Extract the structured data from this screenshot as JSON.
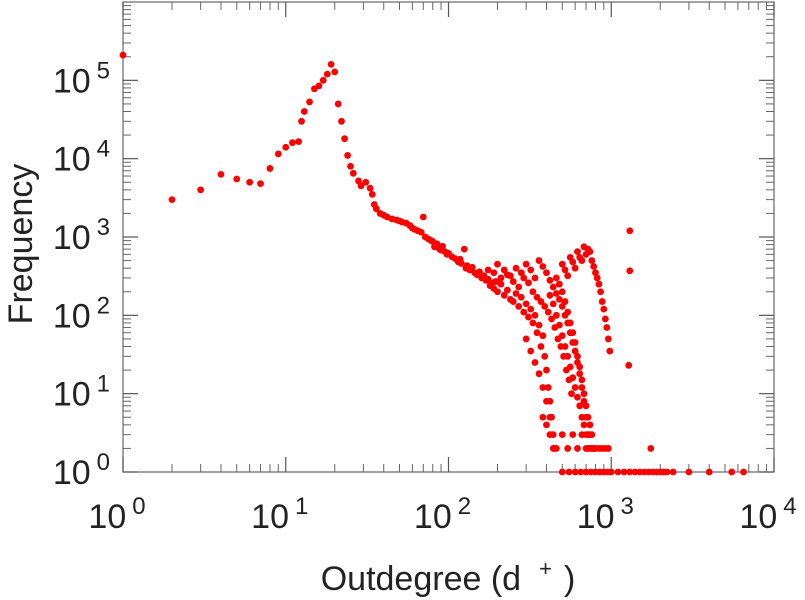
{
  "chart_data": {
    "type": "scatter",
    "title": "",
    "xlabel": {
      "main": "Outdegree (d",
      "sup": "+",
      "close": ")"
    },
    "ylabel": "Frequency",
    "x_scale": "log",
    "y_scale": "log",
    "xlim": [
      1,
      10000
    ],
    "ylim": [
      1,
      1000000
    ],
    "grid": false,
    "legend": "none",
    "marker_color": "#ff0000",
    "x_ticks": [
      {
        "base": "10",
        "exp": "0",
        "value": 1
      },
      {
        "base": "10",
        "exp": "1",
        "value": 10
      },
      {
        "base": "10",
        "exp": "2",
        "value": 100
      },
      {
        "base": "10",
        "exp": "3",
        "value": 1000
      },
      {
        "base": "10",
        "exp": "4",
        "value": 10000
      }
    ],
    "y_ticks": [
      {
        "base": "10",
        "exp": "0",
        "value": 1
      },
      {
        "base": "10",
        "exp": "1",
        "value": 10
      },
      {
        "base": "10",
        "exp": "2",
        "value": 100
      },
      {
        "base": "10",
        "exp": "3",
        "value": 1000
      },
      {
        "base": "10",
        "exp": "4",
        "value": 10000
      },
      {
        "base": "10",
        "exp": "5",
        "value": 100000
      }
    ],
    "points": [
      [
        1,
        210000
      ],
      [
        2,
        3000
      ],
      [
        3,
        4000
      ],
      [
        4,
        6300
      ],
      [
        5,
        5500
      ],
      [
        6,
        5000
      ],
      [
        7,
        4800
      ],
      [
        8,
        7500
      ],
      [
        9,
        11500
      ],
      [
        10,
        14000
      ],
      [
        11,
        16000
      ],
      [
        12,
        16500
      ],
      [
        12.5,
        30000
      ],
      [
        13,
        40000
      ],
      [
        14,
        53000
      ],
      [
        15,
        78000
      ],
      [
        16,
        85000
      ],
      [
        17,
        100000
      ],
      [
        18,
        120000
      ],
      [
        19,
        160000
      ],
      [
        20,
        128000
      ],
      [
        21,
        50000
      ],
      [
        22,
        30000
      ],
      [
        23,
        18000
      ],
      [
        24,
        11000
      ],
      [
        25,
        8000
      ],
      [
        26,
        6500
      ],
      [
        28,
        5200
      ],
      [
        29,
        4500
      ],
      [
        31,
        5000
      ],
      [
        33,
        4200
      ],
      [
        34,
        3500
      ],
      [
        35,
        2600
      ],
      [
        36,
        2300
      ],
      [
        38,
        2000
      ],
      [
        40,
        1900
      ],
      [
        42,
        1800
      ],
      [
        45,
        1700
      ],
      [
        48,
        1650
      ],
      [
        50,
        1600
      ],
      [
        52,
        1550
      ],
      [
        55,
        1500
      ],
      [
        58,
        1400
      ],
      [
        60,
        1300
      ],
      [
        62,
        1250
      ],
      [
        65,
        1200
      ],
      [
        68,
        1150
      ],
      [
        70,
        1800
      ],
      [
        72,
        1000
      ],
      [
        75,
        950
      ],
      [
        78,
        900
      ],
      [
        80,
        880
      ],
      [
        82,
        750
      ],
      [
        85,
        820
      ],
      [
        88,
        700
      ],
      [
        90,
        680
      ],
      [
        92,
        760
      ],
      [
        95,
        650
      ],
      [
        98,
        600
      ],
      [
        100,
        620
      ],
      [
        105,
        560
      ],
      [
        110,
        530
      ],
      [
        115,
        480
      ],
      [
        118,
        520
      ],
      [
        120,
        460
      ],
      [
        125,
        700
      ],
      [
        128,
        400
      ],
      [
        130,
        430
      ],
      [
        135,
        380
      ],
      [
        140,
        410
      ],
      [
        145,
        350
      ],
      [
        150,
        330
      ],
      [
        155,
        360
      ],
      [
        160,
        300
      ],
      [
        165,
        320
      ],
      [
        170,
        280
      ],
      [
        175,
        290
      ],
      [
        180,
        240
      ],
      [
        185,
        260
      ],
      [
        190,
        220
      ],
      [
        195,
        270
      ],
      [
        200,
        200
      ],
      [
        210,
        300
      ],
      [
        220,
        180
      ],
      [
        230,
        210
      ],
      [
        240,
        160
      ],
      [
        250,
        150
      ],
      [
        260,
        190
      ],
      [
        270,
        130
      ],
      [
        280,
        170
      ],
      [
        290,
        110
      ],
      [
        300,
        140
      ],
      [
        310,
        95
      ],
      [
        320,
        120
      ],
      [
        330,
        80
      ],
      [
        340,
        100
      ],
      [
        350,
        60
      ],
      [
        360,
        75
      ],
      [
        370,
        40
      ],
      [
        380,
        55
      ],
      [
        390,
        30
      ],
      [
        400,
        20
      ],
      [
        410,
        12
      ],
      [
        420,
        8
      ],
      [
        430,
        5
      ],
      [
        440,
        3
      ],
      [
        450,
        2
      ],
      [
        175,
        380
      ],
      [
        190,
        350
      ],
      [
        210,
        250
      ],
      [
        230,
        330
      ],
      [
        250,
        270
      ],
      [
        270,
        230
      ],
      [
        290,
        300
      ],
      [
        310,
        260
      ],
      [
        330,
        200
      ],
      [
        350,
        170
      ],
      [
        370,
        150
      ],
      [
        390,
        130
      ],
      [
        410,
        110
      ],
      [
        430,
        90
      ],
      [
        450,
        70
      ],
      [
        470,
        50
      ],
      [
        490,
        40
      ],
      [
        510,
        30
      ],
      [
        530,
        20
      ],
      [
        550,
        15
      ],
      [
        570,
        10
      ],
      [
        200,
        450
      ],
      [
        220,
        380
      ],
      [
        240,
        320
      ],
      [
        260,
        400
      ],
      [
        280,
        350
      ],
      [
        300,
        450
      ],
      [
        320,
        380
      ],
      [
        340,
        300
      ],
      [
        360,
        500
      ],
      [
        380,
        420
      ],
      [
        400,
        350
      ],
      [
        420,
        280
      ],
      [
        440,
        230
      ],
      [
        460,
        190
      ],
      [
        480,
        160
      ],
      [
        500,
        130
      ],
      [
        520,
        100
      ],
      [
        540,
        80
      ],
      [
        560,
        60
      ],
      [
        580,
        45
      ],
      [
        600,
        35
      ],
      [
        620,
        25
      ],
      [
        640,
        18
      ],
      [
        660,
        12
      ],
      [
        680,
        8
      ],
      [
        700,
        5
      ],
      [
        720,
        3
      ],
      [
        740,
        2
      ],
      [
        300,
        50
      ],
      [
        320,
        35
      ],
      [
        340,
        25
      ],
      [
        360,
        18
      ],
      [
        380,
        12
      ],
      [
        400,
        8
      ],
      [
        420,
        5
      ],
      [
        460,
        300
      ],
      [
        480,
        250
      ],
      [
        500,
        450
      ],
      [
        520,
        380
      ],
      [
        540,
        320
      ],
      [
        560,
        550
      ],
      [
        580,
        480
      ],
      [
        600,
        400
      ],
      [
        620,
        650
      ],
      [
        640,
        550
      ],
      [
        660,
        500
      ],
      [
        680,
        750
      ],
      [
        700,
        600
      ],
      [
        720,
        700
      ],
      [
        740,
        650
      ],
      [
        760,
        500
      ],
      [
        780,
        420
      ],
      [
        800,
        350
      ],
      [
        820,
        300
      ],
      [
        840,
        250
      ],
      [
        860,
        200
      ],
      [
        880,
        150
      ],
      [
        900,
        120
      ],
      [
        920,
        90
      ],
      [
        940,
        70
      ],
      [
        960,
        50
      ],
      [
        980,
        35
      ],
      [
        500,
        200
      ],
      [
        520,
        150
      ],
      [
        540,
        110
      ],
      [
        560,
        80
      ],
      [
        580,
        60
      ],
      [
        600,
        45
      ],
      [
        620,
        30
      ],
      [
        640,
        22
      ],
      [
        660,
        15
      ],
      [
        680,
        10
      ],
      [
        700,
        7
      ],
      [
        720,
        5
      ],
      [
        740,
        4
      ],
      [
        760,
        3
      ],
      [
        780,
        2
      ],
      [
        420,
        180
      ],
      [
        440,
        140
      ],
      [
        460,
        100
      ],
      [
        480,
        75
      ],
      [
        500,
        55
      ],
      [
        520,
        40
      ],
      [
        540,
        30
      ],
      [
        560,
        22
      ],
      [
        580,
        16
      ],
      [
        600,
        12
      ],
      [
        620,
        9
      ],
      [
        640,
        7
      ],
      [
        660,
        5
      ],
      [
        680,
        4
      ],
      [
        700,
        3
      ],
      [
        720,
        2
      ],
      [
        760,
        2
      ],
      [
        800,
        2
      ],
      [
        840,
        2
      ],
      [
        880,
        2
      ],
      [
        920,
        2
      ],
      [
        960,
        2
      ],
      [
        380,
        5
      ],
      [
        400,
        4
      ],
      [
        420,
        3
      ],
      [
        440,
        2
      ],
      [
        460,
        2
      ],
      [
        500,
        3
      ],
      [
        540,
        2
      ],
      [
        580,
        3
      ],
      [
        620,
        2
      ],
      [
        660,
        3
      ],
      [
        700,
        2
      ],
      [
        740,
        3
      ],
      [
        780,
        2
      ],
      [
        1300,
        1200
      ],
      [
        1300,
        370
      ],
      [
        1280,
        23
      ],
      [
        1750,
        2
      ],
      [
        500,
        1
      ],
      [
        550,
        1
      ],
      [
        600,
        1
      ],
      [
        650,
        1
      ],
      [
        700,
        1
      ],
      [
        750,
        1
      ],
      [
        800,
        1
      ],
      [
        850,
        1
      ],
      [
        900,
        1
      ],
      [
        950,
        1
      ],
      [
        1000,
        1
      ],
      [
        1100,
        1
      ],
      [
        1200,
        1
      ],
      [
        1300,
        1
      ],
      [
        1400,
        1
      ],
      [
        1500,
        1
      ],
      [
        1600,
        1
      ],
      [
        1700,
        1
      ],
      [
        1800,
        1
      ],
      [
        1900,
        1
      ],
      [
        2000,
        1
      ],
      [
        2100,
        1
      ],
      [
        2200,
        1
      ],
      [
        2400,
        1
      ],
      [
        3000,
        1
      ],
      [
        4000,
        1
      ],
      [
        5500,
        1
      ],
      [
        6500,
        1
      ]
    ]
  }
}
